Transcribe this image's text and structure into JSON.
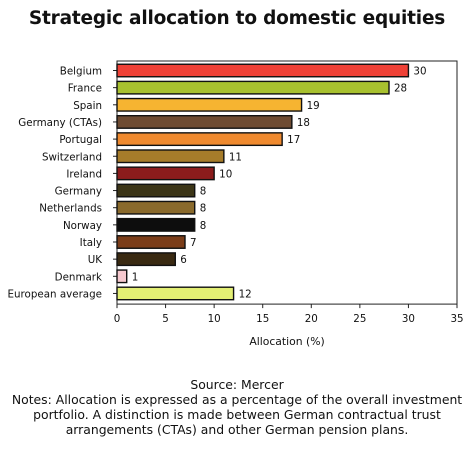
{
  "chart_data": {
    "type": "bar",
    "orientation": "horizontal",
    "title": "Strategic allocation to domestic equities",
    "xlabel": "Allocation (%)",
    "ylabel": "",
    "xlim": [
      0,
      35
    ],
    "x_ticks": [
      0,
      5,
      10,
      15,
      20,
      25,
      30,
      35
    ],
    "grid": false,
    "legend": "none",
    "categories": [
      "Belgium",
      "France",
      "Spain",
      "Germany (CTAs)",
      "Portugal",
      "Switzerland",
      "Ireland",
      "Germany",
      "Netherlands",
      "Norway",
      "Italy",
      "UK",
      "Denmark",
      "European average"
    ],
    "values": [
      30,
      28,
      19,
      18,
      17,
      11,
      10,
      8,
      8,
      8,
      7,
      6,
      1,
      12
    ],
    "colors": [
      "#ef4136",
      "#a8c12f",
      "#f6b431",
      "#6e4b32",
      "#ef8a2f",
      "#a67c2a",
      "#8b1c1c",
      "#3c3517",
      "#8a6a2c",
      "#0d0d0d",
      "#7b3d19",
      "#3a2a12",
      "#f6c9cf",
      "#e3ef74"
    ]
  },
  "footer": {
    "source": "Source: Mercer",
    "notes": "Notes: Allocation is expressed as a percentage of the overall investment portfolio. A distinction is made between German contractual trust arrangements (CTAs) and other German pension plans."
  }
}
